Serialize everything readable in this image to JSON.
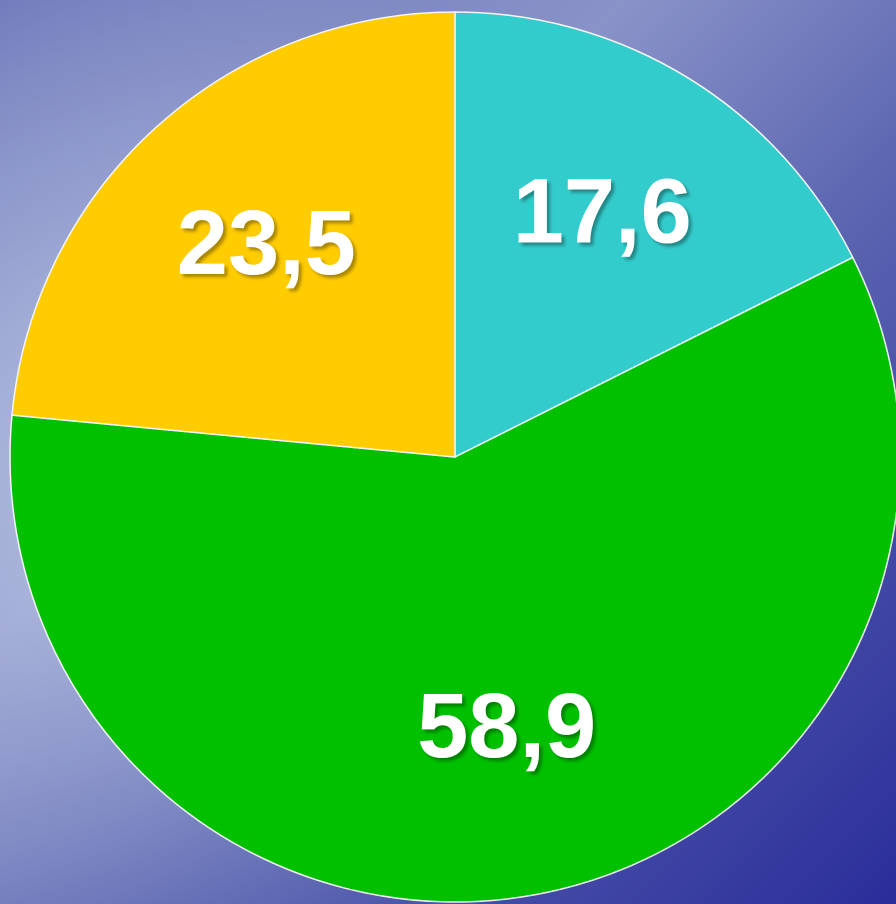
{
  "chart_data": {
    "type": "pie",
    "values": [
      17.6,
      58.9,
      23.5
    ],
    "value_labels": [
      "17,6",
      "58,9",
      "23,5"
    ],
    "colors": [
      "#33cccc",
      "#00c000",
      "#ffcc00"
    ]
  }
}
